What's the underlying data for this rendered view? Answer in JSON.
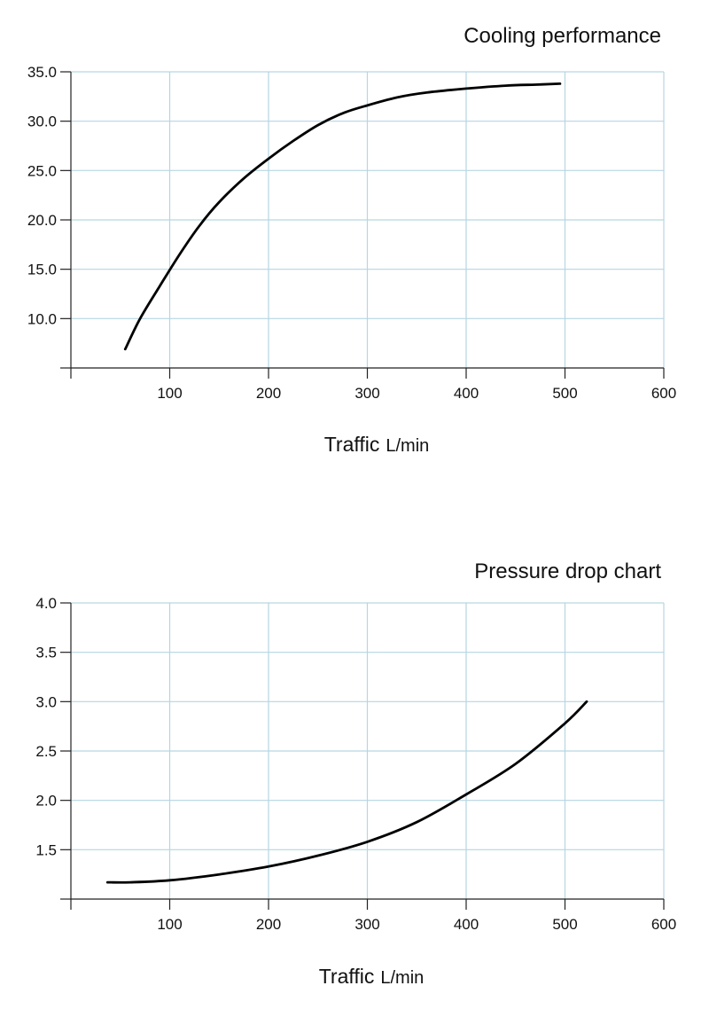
{
  "chart_data": [
    {
      "type": "line",
      "title": "Cooling performance",
      "xlabel": "Traffic",
      "xlabel_unit": "L/min",
      "ylabel": "",
      "xlim": [
        0,
        600
      ],
      "ylim": [
        5,
        35
      ],
      "x_ticks": [
        100,
        200,
        300,
        400,
        500,
        600
      ],
      "x_tick_labels": [
        "100",
        "200",
        "300",
        "400",
        "500",
        "600"
      ],
      "y_ticks": [
        10,
        15,
        20,
        25,
        30,
        35
      ],
      "y_tick_labels": [
        "10.0",
        "15.0",
        "20.0",
        "25.0",
        "30.0",
        "35.0"
      ],
      "grid": true,
      "line_color": "#000000",
      "grid_color": "#b6d6e2",
      "series": [
        {
          "x": [
            55,
            70,
            90,
            110,
            130,
            150,
            175,
            200,
            225,
            250,
            275,
            300,
            330,
            360,
            400,
            440,
            470,
            495
          ],
          "y": [
            6.9,
            10.0,
            13.3,
            16.5,
            19.4,
            21.8,
            24.2,
            26.2,
            28.0,
            29.6,
            30.8,
            31.6,
            32.4,
            32.9,
            33.3,
            33.6,
            33.7,
            33.8
          ]
        }
      ]
    },
    {
      "type": "line",
      "title": "Pressure drop chart",
      "xlabel": "Traffic",
      "xlabel_unit": "L/min",
      "ylabel": "",
      "xlim": [
        0,
        600
      ],
      "ylim": [
        1.0,
        4.0
      ],
      "x_ticks": [
        100,
        200,
        300,
        400,
        500,
        600
      ],
      "x_tick_labels": [
        "100",
        "200",
        "300",
        "400",
        "500",
        "600"
      ],
      "y_ticks": [
        1.5,
        2.0,
        2.5,
        3.0,
        3.5,
        4.0
      ],
      "y_tick_labels": [
        "1.5",
        "2.0",
        "2.5",
        "3.0",
        "3.5",
        "4.0"
      ],
      "grid": true,
      "line_color": "#000000",
      "grid_color": "#b6d6e2",
      "series": [
        {
          "x": [
            37,
            60,
            100,
            150,
            200,
            250,
            300,
            350,
            400,
            450,
            500,
            522
          ],
          "y": [
            1.17,
            1.17,
            1.19,
            1.25,
            1.33,
            1.44,
            1.58,
            1.78,
            2.06,
            2.37,
            2.78,
            3.0
          ]
        }
      ]
    }
  ]
}
